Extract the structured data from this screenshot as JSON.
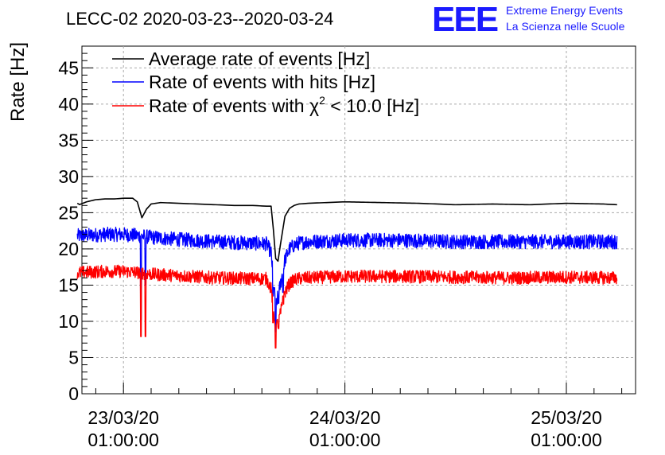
{
  "chart_data": {
    "type": "line",
    "title": "LECC-02 2020-03-23--2020-03-24",
    "xlabel": "",
    "ylabel": "Rate [Hz]",
    "ylim": [
      0,
      48
    ],
    "xlim_hours": [
      -4.5,
      55.5
    ],
    "y_ticks": [
      0,
      5,
      10,
      15,
      20,
      25,
      30,
      35,
      40,
      45
    ],
    "y_tick_labels": [
      "0",
      "5",
      "10",
      "15",
      "20",
      "25",
      "30",
      "35",
      "40",
      "45"
    ],
    "x_ticks": [
      {
        "hour": 0,
        "date": "23/03/20",
        "time": "01:00:00"
      },
      {
        "hour": 24,
        "date": "24/03/20",
        "time": "01:00:00"
      },
      {
        "hour": 48,
        "date": "25/03/20",
        "time": "01:00:00"
      }
    ],
    "grid": true,
    "legend_position": "top-left",
    "legend": [
      {
        "label": "Average rate of events [Hz]",
        "color": "#000000"
      },
      {
        "label": "Rate of events with hits [Hz]",
        "color": "#0000ff"
      },
      {
        "label_prefix": "Rate of events with ",
        "label_symbol": "χ",
        "label_sup": "2",
        "label_suffix": " < 10.0 [Hz]",
        "color": "#ff0000"
      }
    ],
    "series": [
      {
        "name": "Average rate of events [Hz]",
        "color": "#000000",
        "style": "smooth",
        "x": [
          -5,
          -4.8,
          -4,
          -3,
          -2,
          -1,
          0,
          1,
          1.5,
          2,
          2.5,
          3,
          4,
          6,
          8,
          10,
          12,
          14,
          15.5,
          16,
          16.3,
          16.6,
          17,
          17.5,
          18,
          18.5,
          19,
          20,
          24,
          28,
          32,
          36,
          40,
          44,
          48,
          52,
          53.5
        ],
        "y": [
          26.3,
          26.1,
          26.5,
          26.8,
          26.9,
          26.9,
          27.0,
          27.0,
          26.5,
          24.3,
          25.5,
          26.2,
          26.4,
          26.3,
          26.2,
          26.1,
          26.0,
          26.0,
          25.9,
          25.9,
          22.0,
          17.0,
          20.5,
          24.5,
          25.6,
          26.0,
          26.2,
          26.3,
          26.5,
          26.4,
          26.3,
          26.1,
          26.2,
          26.1,
          26.3,
          26.2,
          26.1
        ]
      },
      {
        "name": "Rate of events with hits [Hz]",
        "color": "#0000ff",
        "style": "noisy",
        "noise_amplitude": 1.0,
        "x": [
          -5,
          -2,
          0,
          2,
          3,
          6,
          10,
          14,
          15.5,
          16,
          16.5,
          17,
          17.5,
          18,
          18.5,
          19,
          20,
          24,
          30,
          36,
          42,
          48,
          53.5
        ],
        "y": [
          21.8,
          22.0,
          22.0,
          21.8,
          21.6,
          21.3,
          21.0,
          20.8,
          20.7,
          19.5,
          12.0,
          15.0,
          18.5,
          20.0,
          20.5,
          20.8,
          21.0,
          21.2,
          21.2,
          21.0,
          21.0,
          21.0,
          21.0
        ],
        "spikes": [
          {
            "x": 1.9,
            "y": 10.2
          },
          {
            "x": 2.4,
            "y": 15.0
          },
          {
            "x": 16.2,
            "y": 13.5
          },
          {
            "x": 16.5,
            "y": 8.5
          },
          {
            "x": 16.8,
            "y": 12.5
          },
          {
            "x": 17.3,
            "y": 14.0
          }
        ]
      },
      {
        "name": "Rate of events with χ2 < 10.0 [Hz]",
        "color": "#ff0000",
        "style": "noisy",
        "noise_amplitude": 0.9,
        "x": [
          -5,
          -2,
          0,
          2,
          3,
          6,
          10,
          14,
          15.5,
          16,
          16.5,
          17,
          17.5,
          18,
          18.5,
          19,
          20,
          24,
          30,
          36,
          42,
          48,
          53.5
        ],
        "y": [
          16.7,
          16.9,
          16.9,
          16.7,
          16.5,
          16.3,
          16.0,
          15.9,
          15.9,
          14.5,
          9.0,
          11.0,
          14.0,
          15.2,
          15.7,
          15.9,
          16.0,
          16.2,
          16.2,
          16.1,
          16.0,
          16.1,
          16.0
        ],
        "spikes": [
          {
            "x": 1.9,
            "y": 7.9
          },
          {
            "x": 2.4,
            "y": 7.9
          },
          {
            "x": 16.2,
            "y": 9.8
          },
          {
            "x": 16.5,
            "y": 6.3
          },
          {
            "x": 16.8,
            "y": 9.0
          },
          {
            "x": 17.3,
            "y": 13.5
          }
        ]
      }
    ]
  },
  "branding": {
    "logo_text": "EEE",
    "line1": "Extreme Energy Events",
    "line2": "La Scienza nelle Scuole",
    "color": "#1a1aff"
  }
}
